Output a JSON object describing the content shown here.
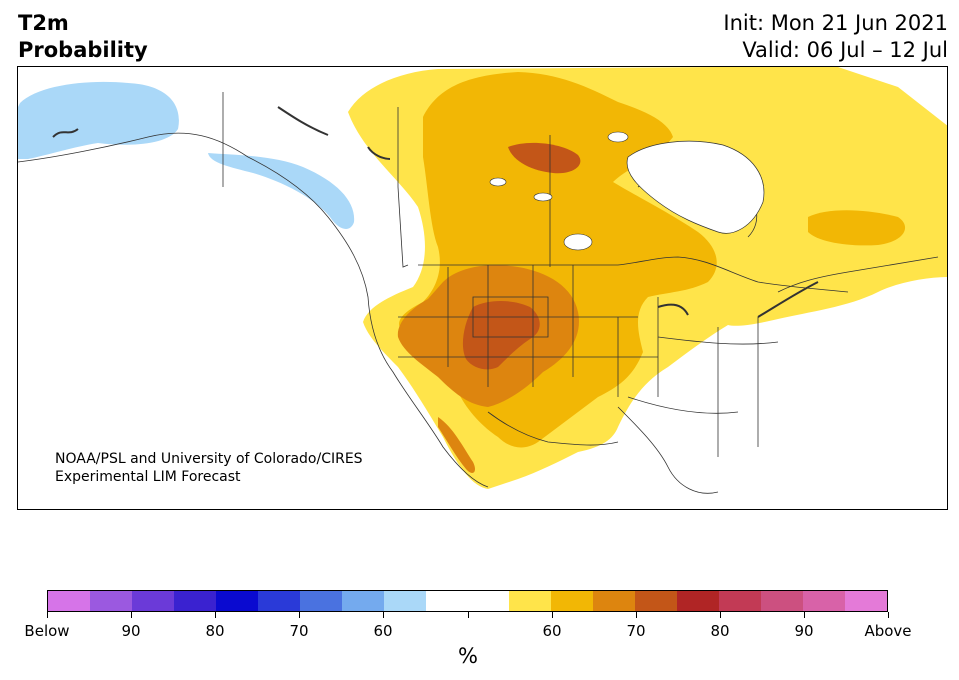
{
  "title": {
    "line1": "T2m",
    "line2": "Probability",
    "init": "Init: Mon 21 Jun 2021",
    "valid": "Valid: 06 Jul – 12 Jul"
  },
  "credit": {
    "line1": "NOAA/PSL and University of Colorado/CIRES",
    "line2": "Experimental LIM Forecast"
  },
  "colorbar": {
    "unit": "%",
    "colors": [
      "#d674e8",
      "#9b59e0",
      "#6b3ad8",
      "#3a22d0",
      "#0a0ad0",
      "#2a3ad8",
      "#4a72e0",
      "#74aaee",
      "#aad8f8",
      "#ffffff",
      "#ffffff",
      "#ffe44a",
      "#f2b705",
      "#dd850f",
      "#c35618",
      "#b02525",
      "#c23a55",
      "#cc5080",
      "#d862a8",
      "#e47ad8"
    ],
    "labels": [
      "Below",
      "90",
      "80",
      "70",
      "60",
      "",
      "60",
      "70",
      "80",
      "90",
      "Above"
    ]
  },
  "map": {
    "land_color": "#ffffff",
    "ocean_color": "#ffffff",
    "border_color": "#333333",
    "cold_60_color": "#aad8f8",
    "warm_60_color": "#ffe44a",
    "warm_65_color": "#f2b705",
    "warm_70_color": "#dd850f",
    "warm_75_color": "#c35618"
  }
}
